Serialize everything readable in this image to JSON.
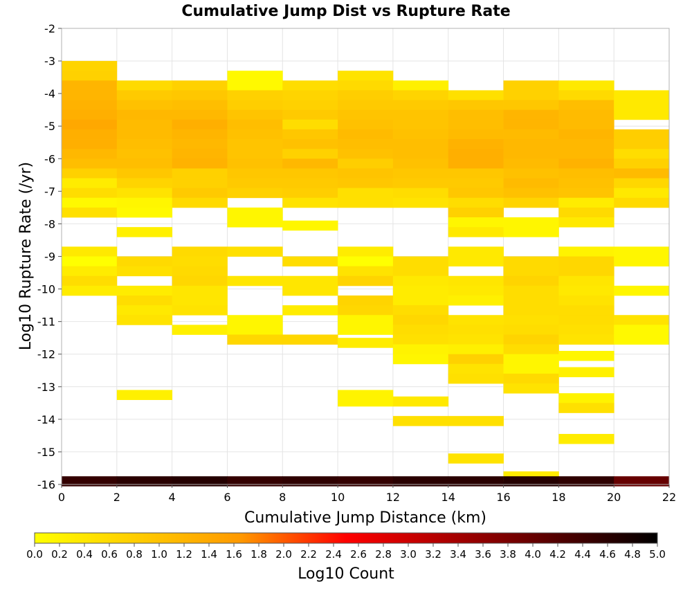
{
  "chart_data": {
    "type": "heatmap",
    "title": "Cumulative Jump Dist vs Rupture Rate",
    "xlabel": "Cumulative Jump Distance (km)",
    "ylabel": "Log10 Rupture Rate (/yr)",
    "xlim": [
      0,
      22
    ],
    "ylim": [
      -16,
      -2
    ],
    "x_ticks": [
      "0",
      "2",
      "4",
      "6",
      "8",
      "10",
      "12",
      "14",
      "16",
      "18",
      "20",
      "22"
    ],
    "y_ticks": [
      "-2",
      "-3",
      "-4",
      "-5",
      "-6",
      "-7",
      "-8",
      "-9",
      "-10",
      "-11",
      "-12",
      "-13",
      "-14",
      "-15",
      "-16"
    ],
    "bin_width_x": 2,
    "bin_height_y": 0.3,
    "grid": true,
    "colorbar": {
      "label": "Log10 Count",
      "range": [
        0,
        5
      ],
      "ticks": [
        "0.0",
        "0.2",
        "0.4",
        "0.6",
        "0.8",
        "1.0",
        "1.2",
        "1.4",
        "1.6",
        "1.8",
        "2.0",
        "2.2",
        "2.4",
        "2.6",
        "2.8",
        "3.0",
        "3.2",
        "3.4",
        "3.6",
        "3.8",
        "4.0",
        "4.2",
        "4.4",
        "4.6",
        "4.8",
        "5.0"
      ],
      "colors": [
        "#ffff00",
        "#ff9900",
        "#ff0000",
        "#000000"
      ]
    },
    "cells": [
      [
        1,
        -3.15,
        0.7
      ],
      [
        1,
        -3.45,
        0.75
      ],
      [
        1,
        -3.75,
        1.2
      ],
      [
        1,
        -4.05,
        1.2
      ],
      [
        1,
        -4.35,
        1.25
      ],
      [
        1,
        -4.65,
        1.3
      ],
      [
        1,
        -4.95,
        1.4
      ],
      [
        1,
        -5.25,
        1.3
      ],
      [
        1,
        -5.55,
        1.3
      ],
      [
        1,
        -5.85,
        1.15
      ],
      [
        1,
        -6.15,
        1.05
      ],
      [
        1,
        -6.45,
        0.75
      ],
      [
        1,
        -6.75,
        0.3
      ],
      [
        1,
        -7.05,
        0.55
      ],
      [
        1,
        -7.35,
        0.1
      ],
      [
        1,
        -7.65,
        0.5
      ],
      [
        1,
        -8.85,
        0.35
      ],
      [
        1,
        -9.15,
        0.0
      ],
      [
        1,
        -9.45,
        0.3
      ],
      [
        1,
        -9.75,
        0.55
      ],
      [
        1,
        -10.05,
        0.3
      ],
      [
        1,
        -15.9,
        4.5
      ],
      [
        3,
        -3.75,
        0.6
      ],
      [
        3,
        -4.05,
        0.85
      ],
      [
        3,
        -4.35,
        1.0
      ],
      [
        3,
        -4.65,
        1.15
      ],
      [
        3,
        -4.95,
        1.1
      ],
      [
        3,
        -5.25,
        1.1
      ],
      [
        3,
        -5.55,
        1.05
      ],
      [
        3,
        -5.85,
        1.0
      ],
      [
        3,
        -6.15,
        1.05
      ],
      [
        3,
        -6.45,
        0.9
      ],
      [
        3,
        -6.75,
        0.7
      ],
      [
        3,
        -7.05,
        0.45
      ],
      [
        3,
        -7.35,
        0.15
      ],
      [
        3,
        -7.65,
        0.1
      ],
      [
        3,
        -8.25,
        0.25
      ],
      [
        3,
        -9.15,
        0.6
      ],
      [
        3,
        -9.45,
        0.5
      ],
      [
        3,
        -10.05,
        0.3
      ],
      [
        3,
        -10.35,
        0.55
      ],
      [
        3,
        -10.65,
        0.35
      ],
      [
        3,
        -10.95,
        0.45
      ],
      [
        3,
        -13.25,
        0.25
      ],
      [
        3,
        -15.9,
        4.6
      ],
      [
        5,
        -3.75,
        0.75
      ],
      [
        5,
        -4.05,
        0.9
      ],
      [
        5,
        -4.35,
        1.05
      ],
      [
        5,
        -4.65,
        1.15
      ],
      [
        5,
        -4.95,
        1.3
      ],
      [
        5,
        -5.25,
        1.2
      ],
      [
        5,
        -5.55,
        1.15
      ],
      [
        5,
        -5.85,
        1.2
      ],
      [
        5,
        -6.15,
        1.25
      ],
      [
        5,
        -6.45,
        0.75
      ],
      [
        5,
        -6.75,
        0.75
      ],
      [
        5,
        -7.05,
        0.85
      ],
      [
        5,
        -7.35,
        0.6
      ],
      [
        5,
        -8.85,
        0.6
      ],
      [
        5,
        -9.15,
        0.55
      ],
      [
        5,
        -9.45,
        0.6
      ],
      [
        5,
        -9.75,
        0.65
      ],
      [
        5,
        -10.05,
        0.4
      ],
      [
        5,
        -10.35,
        0.4
      ],
      [
        5,
        -10.65,
        0.45
      ],
      [
        5,
        -11.25,
        0.25
      ],
      [
        5,
        -15.9,
        4.65
      ],
      [
        7,
        -3.45,
        0.1
      ],
      [
        7,
        -3.75,
        0.1
      ],
      [
        7,
        -4.05,
        0.75
      ],
      [
        7,
        -4.35,
        0.8
      ],
      [
        7,
        -4.65,
        0.95
      ],
      [
        7,
        -4.95,
        1.05
      ],
      [
        7,
        -5.25,
        1.0
      ],
      [
        7,
        -5.55,
        0.95
      ],
      [
        7,
        -5.85,
        0.95
      ],
      [
        7,
        -6.15,
        1.0
      ],
      [
        7,
        -6.45,
        0.9
      ],
      [
        7,
        -6.75,
        0.85
      ],
      [
        7,
        -7.05,
        0.75
      ],
      [
        7,
        -7.65,
        0.15
      ],
      [
        7,
        -7.95,
        0.15
      ],
      [
        7,
        -8.85,
        0.5
      ],
      [
        7,
        -9.75,
        0.4
      ],
      [
        7,
        -10.95,
        0.15
      ],
      [
        7,
        -11.25,
        0.15
      ],
      [
        7,
        -11.55,
        0.65
      ],
      [
        7,
        -15.9,
        4.5
      ],
      [
        9,
        -3.75,
        0.55
      ],
      [
        9,
        -4.05,
        0.7
      ],
      [
        9,
        -4.35,
        0.75
      ],
      [
        9,
        -4.65,
        0.85
      ],
      [
        9,
        -4.95,
        0.55
      ],
      [
        9,
        -5.25,
        0.9
      ],
      [
        9,
        -5.55,
        1.0
      ],
      [
        9,
        -5.85,
        0.75
      ],
      [
        9,
        -6.15,
        1.15
      ],
      [
        9,
        -6.45,
        0.9
      ],
      [
        9,
        -6.75,
        0.85
      ],
      [
        9,
        -7.05,
        0.8
      ],
      [
        9,
        -7.35,
        0.45
      ],
      [
        9,
        -8.05,
        0.15
      ],
      [
        9,
        -9.15,
        0.55
      ],
      [
        9,
        -9.75,
        0.4
      ],
      [
        9,
        -10.05,
        0.4
      ],
      [
        9,
        -10.65,
        0.3
      ],
      [
        9,
        -11.55,
        0.65
      ],
      [
        9,
        -15.9,
        4.55
      ],
      [
        11,
        -3.45,
        0.45
      ],
      [
        11,
        -3.75,
        0.6
      ],
      [
        11,
        -4.05,
        0.8
      ],
      [
        11,
        -4.35,
        0.85
      ],
      [
        11,
        -4.65,
        0.95
      ],
      [
        11,
        -4.95,
        1.0
      ],
      [
        11,
        -5.25,
        1.1
      ],
      [
        11,
        -5.55,
        1.05
      ],
      [
        11,
        -5.85,
        1.0
      ],
      [
        11,
        -6.15,
        0.8
      ],
      [
        11,
        -6.45,
        0.95
      ],
      [
        11,
        -6.75,
        0.9
      ],
      [
        11,
        -7.05,
        0.5
      ],
      [
        11,
        -7.35,
        0.5
      ],
      [
        11,
        -8.85,
        0.3
      ],
      [
        11,
        -9.15,
        0.0
      ],
      [
        11,
        -9.45,
        0.45
      ],
      [
        11,
        -9.75,
        0.7
      ],
      [
        11,
        -10.35,
        0.7
      ],
      [
        11,
        -10.65,
        0.65
      ],
      [
        11,
        -10.95,
        0.15
      ],
      [
        11,
        -11.25,
        0.15
      ],
      [
        11,
        -11.65,
        0.3
      ],
      [
        11,
        -13.25,
        0.2
      ],
      [
        11,
        -13.45,
        0.2
      ],
      [
        11,
        -15.9,
        4.5
      ],
      [
        13,
        -3.75,
        0.25
      ],
      [
        13,
        -4.05,
        0.7
      ],
      [
        13,
        -4.35,
        0.85
      ],
      [
        13,
        -4.65,
        0.95
      ],
      [
        13,
        -4.95,
        0.95
      ],
      [
        13,
        -5.25,
        1.0
      ],
      [
        13,
        -5.55,
        1.05
      ],
      [
        13,
        -5.85,
        1.05
      ],
      [
        13,
        -6.15,
        1.0
      ],
      [
        13,
        -6.45,
        0.9
      ],
      [
        13,
        -6.75,
        0.85
      ],
      [
        13,
        -7.05,
        0.55
      ],
      [
        13,
        -7.35,
        0.45
      ],
      [
        13,
        -9.15,
        0.55
      ],
      [
        13,
        -9.45,
        0.55
      ],
      [
        13,
        -9.75,
        0.35
      ],
      [
        13,
        -10.05,
        0.3
      ],
      [
        13,
        -10.35,
        0.3
      ],
      [
        13,
        -10.65,
        0.55
      ],
      [
        13,
        -10.95,
        0.65
      ],
      [
        13,
        -11.25,
        0.55
      ],
      [
        13,
        -11.55,
        0.5
      ],
      [
        13,
        -11.85,
        0.2
      ],
      [
        13,
        -12.15,
        0.15
      ],
      [
        13,
        -13.45,
        0.35
      ],
      [
        13,
        -14.05,
        0.5
      ],
      [
        13,
        -15.9,
        4.6
      ],
      [
        15,
        -4.05,
        0.5
      ],
      [
        15,
        -4.35,
        0.9
      ],
      [
        15,
        -4.65,
        1.05
      ],
      [
        15,
        -4.95,
        1.05
      ],
      [
        15,
        -5.25,
        1.1
      ],
      [
        15,
        -5.55,
        1.25
      ],
      [
        15,
        -5.85,
        1.3
      ],
      [
        15,
        -6.15,
        1.3
      ],
      [
        15,
        -6.45,
        0.9
      ],
      [
        15,
        -6.75,
        0.85
      ],
      [
        15,
        -7.05,
        0.9
      ],
      [
        15,
        -7.35,
        0.55
      ],
      [
        15,
        -7.65,
        0.75
      ],
      [
        15,
        -7.95,
        0.15
      ],
      [
        15,
        -8.25,
        0.35
      ],
      [
        15,
        -8.85,
        0.35
      ],
      [
        15,
        -9.15,
        0.35
      ],
      [
        15,
        -9.75,
        0.4
      ],
      [
        15,
        -10.05,
        0.35
      ],
      [
        15,
        -10.35,
        0.25
      ],
      [
        15,
        -10.95,
        0.45
      ],
      [
        15,
        -11.25,
        0.5
      ],
      [
        15,
        -11.55,
        0.45
      ],
      [
        15,
        -11.85,
        0.25
      ],
      [
        15,
        -12.15,
        0.75
      ],
      [
        15,
        -12.45,
        0.45
      ],
      [
        15,
        -12.75,
        0.5
      ],
      [
        15,
        -14.05,
        0.5
      ],
      [
        15,
        -15.2,
        0.45
      ],
      [
        15,
        -15.9,
        4.6
      ],
      [
        17,
        -3.75,
        0.75
      ],
      [
        17,
        -4.05,
        0.75
      ],
      [
        17,
        -4.35,
        0.9
      ],
      [
        17,
        -4.65,
        1.2
      ],
      [
        17,
        -4.95,
        1.2
      ],
      [
        17,
        -5.25,
        1.1
      ],
      [
        17,
        -5.55,
        1.15
      ],
      [
        17,
        -5.85,
        1.15
      ],
      [
        17,
        -6.15,
        1.1
      ],
      [
        17,
        -6.45,
        1.0
      ],
      [
        17,
        -6.75,
        1.1
      ],
      [
        17,
        -7.05,
        1.0
      ],
      [
        17,
        -7.35,
        0.7
      ],
      [
        17,
        -7.95,
        0.15
      ],
      [
        17,
        -8.25,
        0.15
      ],
      [
        17,
        -9.15,
        0.6
      ],
      [
        17,
        -9.45,
        0.6
      ],
      [
        17,
        -9.75,
        0.7
      ],
      [
        17,
        -10.05,
        0.55
      ],
      [
        17,
        -10.35,
        0.55
      ],
      [
        17,
        -10.65,
        0.55
      ],
      [
        17,
        -10.95,
        0.5
      ],
      [
        17,
        -11.25,
        0.55
      ],
      [
        17,
        -11.55,
        0.7
      ],
      [
        17,
        -11.85,
        0.55
      ],
      [
        17,
        -12.15,
        0.15
      ],
      [
        17,
        -12.45,
        0.15
      ],
      [
        17,
        -12.75,
        0.6
      ],
      [
        17,
        -13.05,
        0.45
      ],
      [
        17,
        -15.75,
        0.3
      ],
      [
        17,
        -15.9,
        4.65
      ],
      [
        19,
        -3.75,
        0.35
      ],
      [
        19,
        -4.05,
        0.6
      ],
      [
        19,
        -4.35,
        1.05
      ],
      [
        19,
        -4.65,
        1.1
      ],
      [
        19,
        -4.95,
        1.1
      ],
      [
        19,
        -5.25,
        1.2
      ],
      [
        19,
        -5.55,
        1.15
      ],
      [
        19,
        -5.85,
        1.15
      ],
      [
        19,
        -6.15,
        1.25
      ],
      [
        19,
        -6.45,
        1.05
      ],
      [
        19,
        -6.75,
        1.0
      ],
      [
        19,
        -7.05,
        0.95
      ],
      [
        19,
        -7.35,
        0.3
      ],
      [
        19,
        -7.65,
        0.6
      ],
      [
        19,
        -7.95,
        0.35
      ],
      [
        19,
        -8.85,
        0.2
      ],
      [
        19,
        -9.15,
        0.65
      ],
      [
        19,
        -9.45,
        0.65
      ],
      [
        19,
        -9.75,
        0.4
      ],
      [
        19,
        -10.05,
        0.35
      ],
      [
        19,
        -10.35,
        0.45
      ],
      [
        19,
        -10.65,
        0.55
      ],
      [
        19,
        -10.95,
        0.55
      ],
      [
        19,
        -11.25,
        0.5
      ],
      [
        19,
        -11.55,
        0.45
      ],
      [
        19,
        -12.05,
        0.15
      ],
      [
        19,
        -12.55,
        0.25
      ],
      [
        19,
        -13.35,
        0.2
      ],
      [
        19,
        -13.65,
        0.5
      ],
      [
        19,
        -14.6,
        0.3
      ],
      [
        19,
        -15.9,
        4.55
      ],
      [
        21,
        -4.05,
        0.35
      ],
      [
        21,
        -4.35,
        0.35
      ],
      [
        21,
        -4.65,
        0.35
      ],
      [
        21,
        -5.25,
        0.8
      ],
      [
        21,
        -5.55,
        0.8
      ],
      [
        21,
        -5.85,
        0.55
      ],
      [
        21,
        -6.15,
        0.75
      ],
      [
        21,
        -6.45,
        1.1
      ],
      [
        21,
        -6.75,
        0.65
      ],
      [
        21,
        -7.05,
        0.35
      ],
      [
        21,
        -7.35,
        0.6
      ],
      [
        21,
        -8.85,
        0.15
      ],
      [
        21,
        -9.15,
        0.15
      ],
      [
        21,
        -10.05,
        0.15
      ],
      [
        21,
        -10.95,
        0.45
      ],
      [
        21,
        -11.25,
        0.1
      ],
      [
        21,
        -11.55,
        0.1
      ],
      [
        21,
        -15.9,
        4.0
      ]
    ]
  }
}
